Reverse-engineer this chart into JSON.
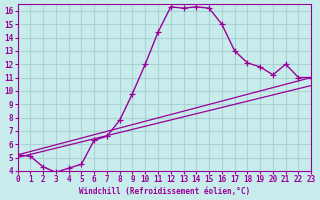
{
  "xlabel": "Windchill (Refroidissement éolien,°C)",
  "ylabel": "",
  "background_color": "#c8ecec",
  "grid_color": "#aad4d4",
  "line_color": "#990099",
  "xlim": [
    0,
    23
  ],
  "ylim": [
    4,
    16.5
  ],
  "xticks": [
    0,
    1,
    2,
    3,
    4,
    5,
    6,
    7,
    8,
    9,
    10,
    11,
    12,
    13,
    14,
    15,
    16,
    17,
    18,
    19,
    20,
    21,
    22,
    23
  ],
  "yticks": [
    4,
    5,
    6,
    7,
    8,
    9,
    10,
    11,
    12,
    13,
    14,
    15,
    16
  ],
  "series1_x": [
    0,
    1,
    2,
    3,
    4,
    5,
    6,
    7,
    8,
    9,
    10,
    11,
    12,
    13,
    14,
    15,
    16,
    17,
    18,
    19,
    20,
    21,
    22,
    23
  ],
  "series1_y": [
    5.2,
    5.1,
    4.3,
    3.9,
    4.2,
    4.5,
    6.3,
    6.6,
    7.8,
    9.8,
    12.0,
    14.4,
    16.3,
    16.2,
    16.3,
    16.2,
    15.0,
    13.0,
    12.1,
    11.8,
    11.2,
    12.0,
    11.0,
    11.0
  ],
  "series2_x": [
    0,
    23
  ],
  "series2_y": [
    5.2,
    11.0
  ],
  "series3_x": [
    0,
    23
  ],
  "series3_y": [
    5.0,
    10.4
  ]
}
